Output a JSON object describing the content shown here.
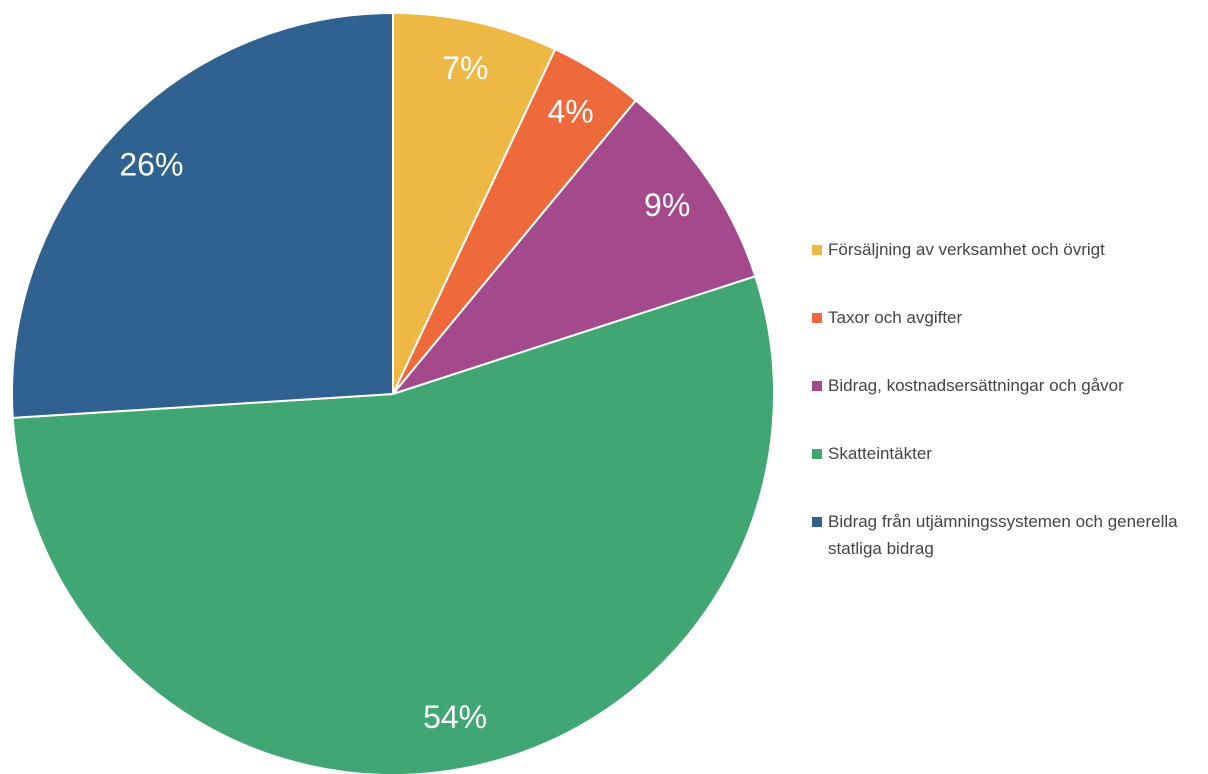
{
  "chart_data": {
    "type": "pie",
    "categories": [
      "Försäljning av verksamhet och övrigt",
      "Taxor och avgifter",
      "Bidrag, kostnadsersättningar och gåvor",
      "Skatteintäkter",
      "Bidrag från utjämningssystemen och generella statliga bidrag"
    ],
    "values": [
      7,
      4,
      9,
      54,
      26
    ],
    "value_labels": [
      "7%",
      "4%",
      "9%",
      "54%",
      "26%"
    ],
    "colors": [
      "#eeb845",
      "#ee6a3a",
      "#a44a8c",
      "#3fa674",
      "#2f6191"
    ],
    "legend": "right"
  }
}
